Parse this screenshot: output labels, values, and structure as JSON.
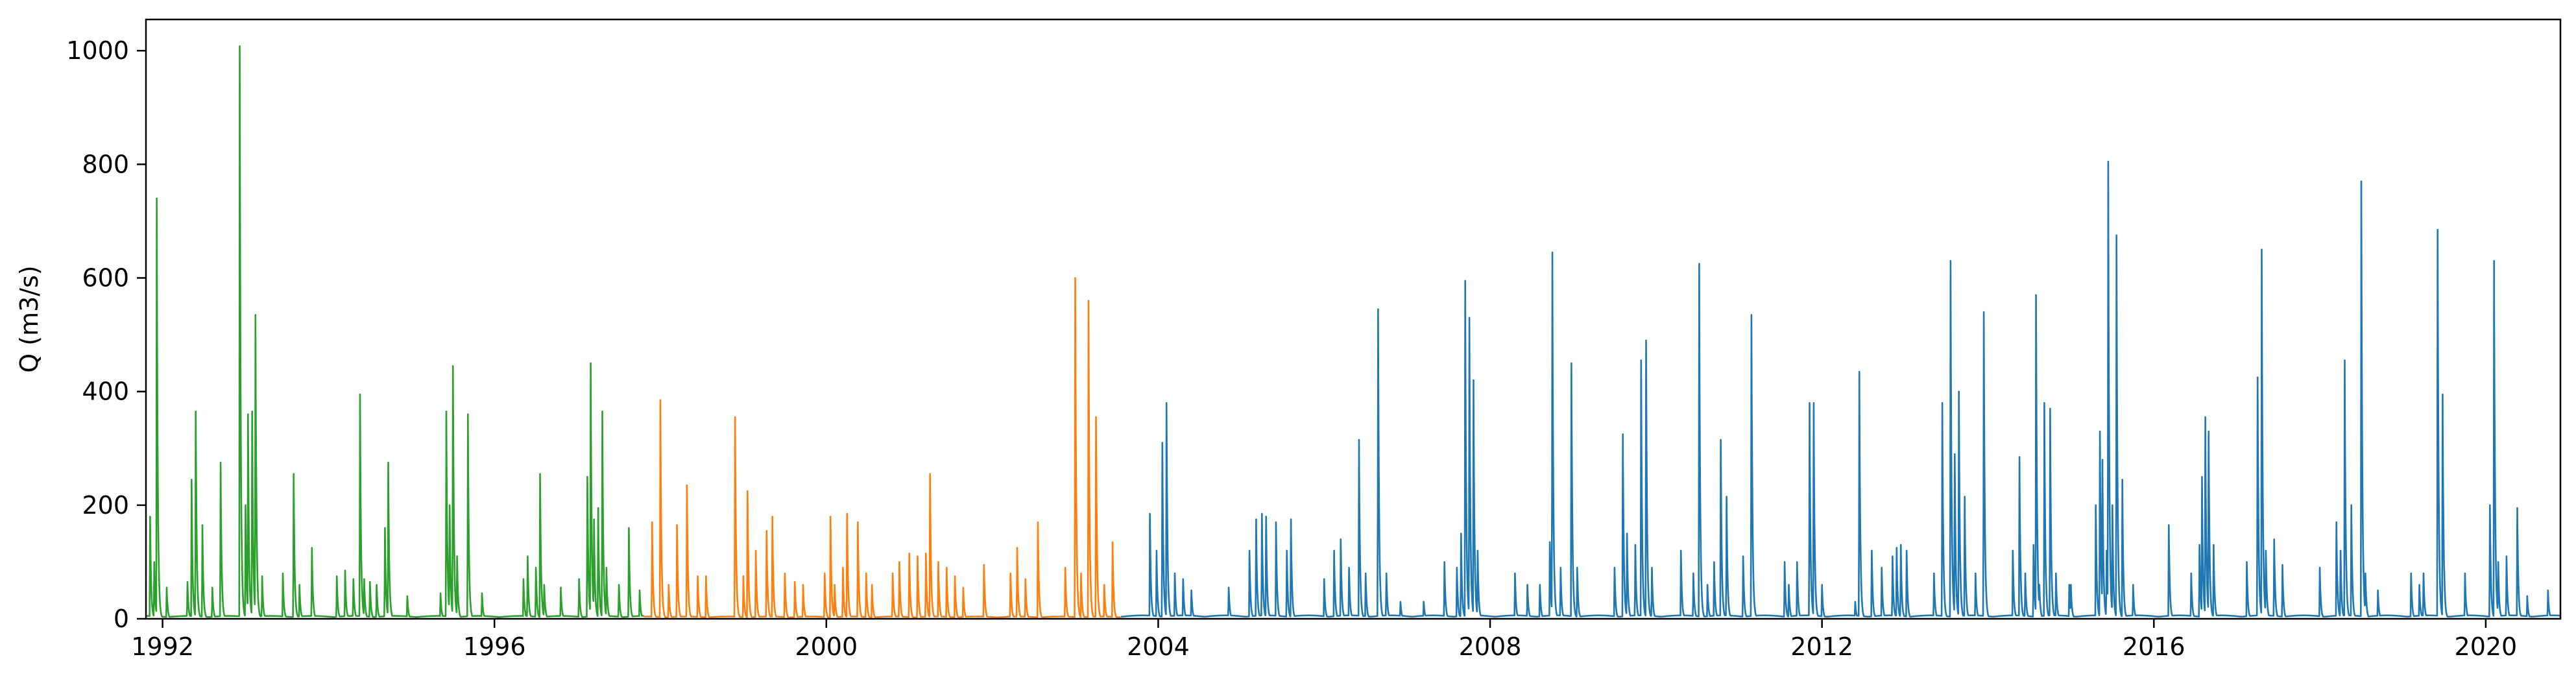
{
  "chart_data": {
    "type": "line",
    "title": "",
    "xlabel": "",
    "ylabel": "Q (m3/s)",
    "x_unit": "year",
    "xlim": [
      1991.8,
      2020.9
    ],
    "ylim": [
      0,
      1055
    ],
    "xticks": [
      {
        "value": 1992,
        "label": "1992"
      },
      {
        "value": 1996,
        "label": "1996"
      },
      {
        "value": 2000,
        "label": "2000"
      },
      {
        "value": 2004,
        "label": "2004"
      },
      {
        "value": 2008,
        "label": "2008"
      },
      {
        "value": 2012,
        "label": "2012"
      },
      {
        "value": 2016,
        "label": "2016"
      },
      {
        "value": 2020,
        "label": "2020"
      }
    ],
    "yticks": [
      {
        "value": 0,
        "label": "0"
      },
      {
        "value": 200,
        "label": "200"
      },
      {
        "value": 400,
        "label": "400"
      },
      {
        "value": 600,
        "label": "600"
      },
      {
        "value": 800,
        "label": "800"
      },
      {
        "value": 1000,
        "label": "1000"
      }
    ],
    "grid": false,
    "legend": "none",
    "series": [
      {
        "color": "#2ca02c",
        "x_range": [
          1991.8,
          1997.8
        ],
        "peaks": [
          [
            1991.85,
            180
          ],
          [
            1991.9,
            100
          ],
          [
            1991.93,
            740
          ],
          [
            1992.05,
            55
          ],
          [
            1992.3,
            65
          ],
          [
            1992.35,
            245
          ],
          [
            1992.4,
            365
          ],
          [
            1992.48,
            165
          ],
          [
            1992.6,
            55
          ],
          [
            1992.7,
            275
          ],
          [
            1992.93,
            1008
          ],
          [
            1993.0,
            200
          ],
          [
            1993.03,
            360
          ],
          [
            1993.08,
            365
          ],
          [
            1993.12,
            535
          ],
          [
            1993.2,
            75
          ],
          [
            1993.45,
            80
          ],
          [
            1993.58,
            255
          ],
          [
            1993.65,
            60
          ],
          [
            1993.8,
            125
          ],
          [
            1994.1,
            75
          ],
          [
            1994.2,
            85
          ],
          [
            1994.3,
            70
          ],
          [
            1994.38,
            395
          ],
          [
            1994.43,
            70
          ],
          [
            1994.5,
            65
          ],
          [
            1994.58,
            60
          ],
          [
            1994.68,
            160
          ],
          [
            1994.72,
            275
          ],
          [
            1994.95,
            40
          ],
          [
            1995.35,
            45
          ],
          [
            1995.42,
            365
          ],
          [
            1995.46,
            200
          ],
          [
            1995.5,
            445
          ],
          [
            1995.55,
            110
          ],
          [
            1995.68,
            360
          ],
          [
            1995.85,
            45
          ],
          [
            1996.35,
            70
          ],
          [
            1996.4,
            110
          ],
          [
            1996.5,
            90
          ],
          [
            1996.55,
            255
          ],
          [
            1996.6,
            60
          ],
          [
            1996.8,
            55
          ],
          [
            1997.02,
            70
          ],
          [
            1997.12,
            250
          ],
          [
            1997.16,
            450
          ],
          [
            1997.2,
            175
          ],
          [
            1997.25,
            195
          ],
          [
            1997.3,
            365
          ],
          [
            1997.35,
            90
          ],
          [
            1997.5,
            60
          ],
          [
            1997.62,
            160
          ],
          [
            1997.75,
            50
          ]
        ],
        "baseflow": 5
      },
      {
        "color": "#ff7f0e",
        "x_range": [
          1997.8,
          2003.55
        ],
        "peaks": [
          [
            1997.9,
            170
          ],
          [
            1998.0,
            385
          ],
          [
            1998.1,
            60
          ],
          [
            1998.2,
            165
          ],
          [
            1998.32,
            235
          ],
          [
            1998.45,
            75
          ],
          [
            1998.55,
            75
          ],
          [
            1998.9,
            355
          ],
          [
            1999.0,
            75
          ],
          [
            1999.05,
            225
          ],
          [
            1999.15,
            120
          ],
          [
            1999.28,
            155
          ],
          [
            1999.35,
            180
          ],
          [
            1999.5,
            80
          ],
          [
            1999.62,
            65
          ],
          [
            1999.72,
            60
          ],
          [
            1999.98,
            80
          ],
          [
            2000.05,
            180
          ],
          [
            2000.1,
            60
          ],
          [
            2000.2,
            90
          ],
          [
            2000.25,
            185
          ],
          [
            2000.38,
            170
          ],
          [
            2000.48,
            80
          ],
          [
            2000.55,
            60
          ],
          [
            2000.8,
            80
          ],
          [
            2000.88,
            100
          ],
          [
            2001.0,
            115
          ],
          [
            2001.1,
            110
          ],
          [
            2001.2,
            115
          ],
          [
            2001.25,
            255
          ],
          [
            2001.35,
            100
          ],
          [
            2001.45,
            90
          ],
          [
            2001.55,
            75
          ],
          [
            2001.65,
            55
          ],
          [
            2001.9,
            95
          ],
          [
            2002.22,
            80
          ],
          [
            2002.3,
            125
          ],
          [
            2002.4,
            70
          ],
          [
            2002.55,
            170
          ],
          [
            2002.88,
            90
          ],
          [
            2003.0,
            600
          ],
          [
            2003.07,
            80
          ],
          [
            2003.16,
            560
          ],
          [
            2003.25,
            355
          ],
          [
            2003.35,
            60
          ],
          [
            2003.45,
            135
          ]
        ],
        "baseflow": 4
      },
      {
        "color": "#1f77b4",
        "x_range": [
          2003.55,
          2020.9
        ],
        "peaks": [
          [
            2003.9,
            185
          ],
          [
            2003.98,
            120
          ],
          [
            2004.05,
            310
          ],
          [
            2004.1,
            380
          ],
          [
            2004.2,
            80
          ],
          [
            2004.3,
            70
          ],
          [
            2004.4,
            50
          ],
          [
            2004.85,
            55
          ],
          [
            2005.1,
            120
          ],
          [
            2005.18,
            175
          ],
          [
            2005.25,
            185
          ],
          [
            2005.3,
            180
          ],
          [
            2005.42,
            170
          ],
          [
            2005.55,
            120
          ],
          [
            2005.6,
            175
          ],
          [
            2006.0,
            70
          ],
          [
            2006.12,
            120
          ],
          [
            2006.2,
            140
          ],
          [
            2006.3,
            90
          ],
          [
            2006.42,
            315
          ],
          [
            2006.5,
            80
          ],
          [
            2006.65,
            545
          ],
          [
            2006.75,
            80
          ],
          [
            2006.92,
            30
          ],
          [
            2007.2,
            30
          ],
          [
            2007.45,
            100
          ],
          [
            2007.6,
            90
          ],
          [
            2007.65,
            150
          ],
          [
            2007.7,
            595
          ],
          [
            2007.75,
            530
          ],
          [
            2007.8,
            420
          ],
          [
            2007.85,
            120
          ],
          [
            2008.3,
            80
          ],
          [
            2008.45,
            60
          ],
          [
            2008.6,
            60
          ],
          [
            2008.72,
            135
          ],
          [
            2008.75,
            645
          ],
          [
            2008.85,
            90
          ],
          [
            2008.98,
            450
          ],
          [
            2009.05,
            90
          ],
          [
            2009.5,
            90
          ],
          [
            2009.6,
            325
          ],
          [
            2009.65,
            150
          ],
          [
            2009.75,
            130
          ],
          [
            2009.82,
            455
          ],
          [
            2009.88,
            490
          ],
          [
            2009.95,
            90
          ],
          [
            2010.3,
            120
          ],
          [
            2010.45,
            80
          ],
          [
            2010.52,
            625
          ],
          [
            2010.62,
            60
          ],
          [
            2010.7,
            100
          ],
          [
            2010.78,
            315
          ],
          [
            2010.85,
            215
          ],
          [
            2011.05,
            110
          ],
          [
            2011.15,
            535
          ],
          [
            2011.55,
            100
          ],
          [
            2011.6,
            60
          ],
          [
            2011.7,
            100
          ],
          [
            2011.85,
            380
          ],
          [
            2011.9,
            380
          ],
          [
            2012.0,
            60
          ],
          [
            2012.4,
            30
          ],
          [
            2012.45,
            435
          ],
          [
            2012.6,
            120
          ],
          [
            2012.72,
            90
          ],
          [
            2012.85,
            110
          ],
          [
            2012.9,
            125
          ],
          [
            2012.95,
            130
          ],
          [
            2013.02,
            120
          ],
          [
            2013.35,
            80
          ],
          [
            2013.45,
            380
          ],
          [
            2013.55,
            630
          ],
          [
            2013.6,
            290
          ],
          [
            2013.65,
            400
          ],
          [
            2013.72,
            215
          ],
          [
            2013.85,
            80
          ],
          [
            2013.95,
            540
          ],
          [
            2014.3,
            120
          ],
          [
            2014.38,
            285
          ],
          [
            2014.45,
            80
          ],
          [
            2014.55,
            130
          ],
          [
            2014.58,
            570
          ],
          [
            2014.62,
            60
          ],
          [
            2014.68,
            380
          ],
          [
            2014.75,
            370
          ],
          [
            2014.82,
            80
          ],
          [
            2014.98,
            60
          ],
          [
            2015.0,
            60
          ],
          [
            2015.3,
            200
          ],
          [
            2015.35,
            330
          ],
          [
            2015.38,
            280
          ],
          [
            2015.43,
            120
          ],
          [
            2015.45,
            805
          ],
          [
            2015.5,
            200
          ],
          [
            2015.55,
            675
          ],
          [
            2015.62,
            245
          ],
          [
            2015.75,
            60
          ],
          [
            2016.18,
            165
          ],
          [
            2016.45,
            80
          ],
          [
            2016.55,
            130
          ],
          [
            2016.58,
            250
          ],
          [
            2016.62,
            355
          ],
          [
            2016.66,
            330
          ],
          [
            2016.72,
            130
          ],
          [
            2017.12,
            100
          ],
          [
            2017.25,
            425
          ],
          [
            2017.3,
            650
          ],
          [
            2017.35,
            120
          ],
          [
            2017.45,
            140
          ],
          [
            2017.55,
            95
          ],
          [
            2018.0,
            90
          ],
          [
            2018.2,
            170
          ],
          [
            2018.25,
            120
          ],
          [
            2018.3,
            455
          ],
          [
            2018.38,
            200
          ],
          [
            2018.5,
            770
          ],
          [
            2018.55,
            80
          ],
          [
            2018.7,
            50
          ],
          [
            2019.1,
            80
          ],
          [
            2019.2,
            60
          ],
          [
            2019.25,
            80
          ],
          [
            2019.42,
            685
          ],
          [
            2019.48,
            395
          ],
          [
            2019.5,
            85
          ],
          [
            2019.75,
            80
          ],
          [
            2020.05,
            200
          ],
          [
            2020.1,
            630
          ],
          [
            2020.15,
            100
          ],
          [
            2020.25,
            110
          ],
          [
            2020.38,
            195
          ],
          [
            2020.5,
            40
          ],
          [
            2020.75,
            50
          ]
        ],
        "baseflow": 6
      }
    ]
  }
}
